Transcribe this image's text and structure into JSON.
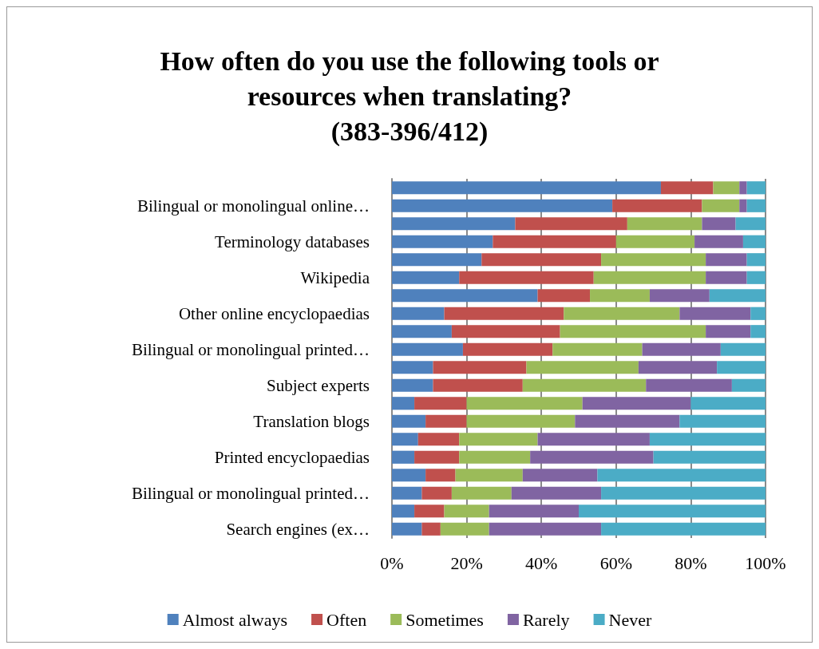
{
  "chart_data": {
    "type": "bar",
    "orientation": "horizontal",
    "stacked": true,
    "title": "How often do you use the following tools or\nresources when translating?\n(383-396/412)",
    "categories": [
      null,
      "Bilingual or monolingual online…",
      null,
      "Terminology databases",
      null,
      "Wikipedia",
      null,
      "Other online encyclopaedias",
      null,
      "Bilingual or monolingual printed…",
      null,
      "Subject experts",
      null,
      "Translation blogs",
      null,
      "Printed encyclopaedias",
      null,
      "Bilingual or monolingual printed…",
      null,
      "Search engines (ex…"
    ],
    "series": [
      {
        "name": "Almost always",
        "color": "#4f81bd",
        "values": [
          72,
          59,
          33,
          27,
          24,
          18,
          39,
          14,
          16,
          19,
          11,
          11,
          6,
          9,
          7,
          6,
          9,
          8,
          6,
          8
        ]
      },
      {
        "name": "Often",
        "color": "#c0504d",
        "values": [
          14,
          24,
          30,
          33,
          32,
          36,
          14,
          32,
          29,
          24,
          25,
          24,
          14,
          11,
          11,
          12,
          8,
          8,
          8,
          5
        ]
      },
      {
        "name": "Sometimes",
        "color": "#9bbb59",
        "values": [
          7,
          10,
          20,
          21,
          28,
          30,
          16,
          31,
          39,
          24,
          30,
          33,
          31,
          29,
          21,
          19,
          18,
          16,
          12,
          13
        ]
      },
      {
        "name": "Rarely",
        "color": "#8064a2",
        "values": [
          2,
          2,
          9,
          13,
          11,
          11,
          16,
          19,
          12,
          21,
          21,
          23,
          29,
          28,
          30,
          33,
          20,
          24,
          24,
          30
        ]
      },
      {
        "name": "Never",
        "color": "#4bacc6",
        "values": [
          5,
          5,
          8,
          6,
          5,
          5,
          15,
          4,
          4,
          12,
          13,
          9,
          20,
          23,
          31,
          30,
          45,
          44,
          50,
          44
        ]
      }
    ],
    "xlim": [
      0,
      100
    ],
    "xticks": [
      {
        "value": 0,
        "label": "0%"
      },
      {
        "value": 20,
        "label": "20%"
      },
      {
        "value": 40,
        "label": "40%"
      },
      {
        "value": 60,
        "label": "60%"
      },
      {
        "value": 80,
        "label": "80%"
      },
      {
        "value": 100,
        "label": "100%"
      }
    ],
    "grid": "x",
    "legend": "bottom"
  }
}
